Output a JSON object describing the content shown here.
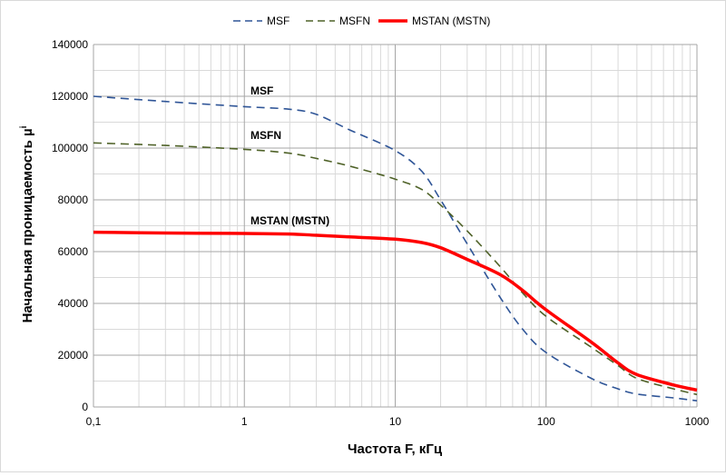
{
  "chart_data": {
    "type": "line",
    "xscale": "log",
    "xlim": [
      0.1,
      1000
    ],
    "ylim": [
      0,
      140000
    ],
    "xlabel": "Частота F, кГц",
    "ylabel": "Начальная проницаемость µ",
    "ylabel_superscript": "i",
    "grid": true,
    "legend_position": "top",
    "xticks": [
      0.1,
      1,
      10,
      100,
      1000
    ],
    "xtick_labels": [
      "0,1",
      "1",
      "10",
      "100",
      "1000"
    ],
    "yticks": [
      0,
      20000,
      40000,
      60000,
      80000,
      100000,
      120000,
      140000
    ],
    "ytick_labels": [
      "0",
      "20000",
      "40000",
      "60000",
      "80000",
      "100000",
      "120000",
      "140000"
    ],
    "series": [
      {
        "name": "MSF",
        "color": "#2F5597",
        "dash": "dashed",
        "annotation": "MSF",
        "x": [
          0.1,
          0.3,
          1,
          2,
          3,
          5,
          10,
          15,
          20,
          30,
          50,
          70,
          100,
          200,
          300,
          400,
          700,
          1000
        ],
        "y": [
          120000,
          118000,
          116000,
          115000,
          113000,
          107000,
          99000,
          91000,
          80000,
          63000,
          42000,
          30000,
          21000,
          11000,
          7000,
          5000,
          3500,
          2400
        ]
      },
      {
        "name": "MSFN",
        "color": "#4F6228",
        "dash": "dashed",
        "annotation": "MSFN",
        "x": [
          0.1,
          0.3,
          1,
          2,
          3,
          5,
          10,
          15,
          20,
          30,
          50,
          70,
          100,
          200,
          300,
          400,
          700,
          1000
        ],
        "y": [
          102000,
          101000,
          99500,
          98000,
          96000,
          93000,
          88000,
          84000,
          78000,
          68000,
          54000,
          44000,
          35000,
          23000,
          16000,
          11000,
          7000,
          4800
        ]
      },
      {
        "name": "MSTAN (MSTN)",
        "color": "#FF0000",
        "dash": "solid",
        "annotation": "MSTAN (MSTN)",
        "x": [
          0.1,
          0.3,
          1,
          2,
          3,
          5,
          10,
          15,
          20,
          30,
          50,
          70,
          100,
          200,
          300,
          400,
          700,
          1000
        ],
        "y": [
          67500,
          67200,
          67000,
          66800,
          66300,
          65700,
          64800,
          63500,
          61500,
          57000,
          51000,
          45000,
          37500,
          25000,
          17000,
          12500,
          8500,
          6500
        ]
      }
    ]
  }
}
